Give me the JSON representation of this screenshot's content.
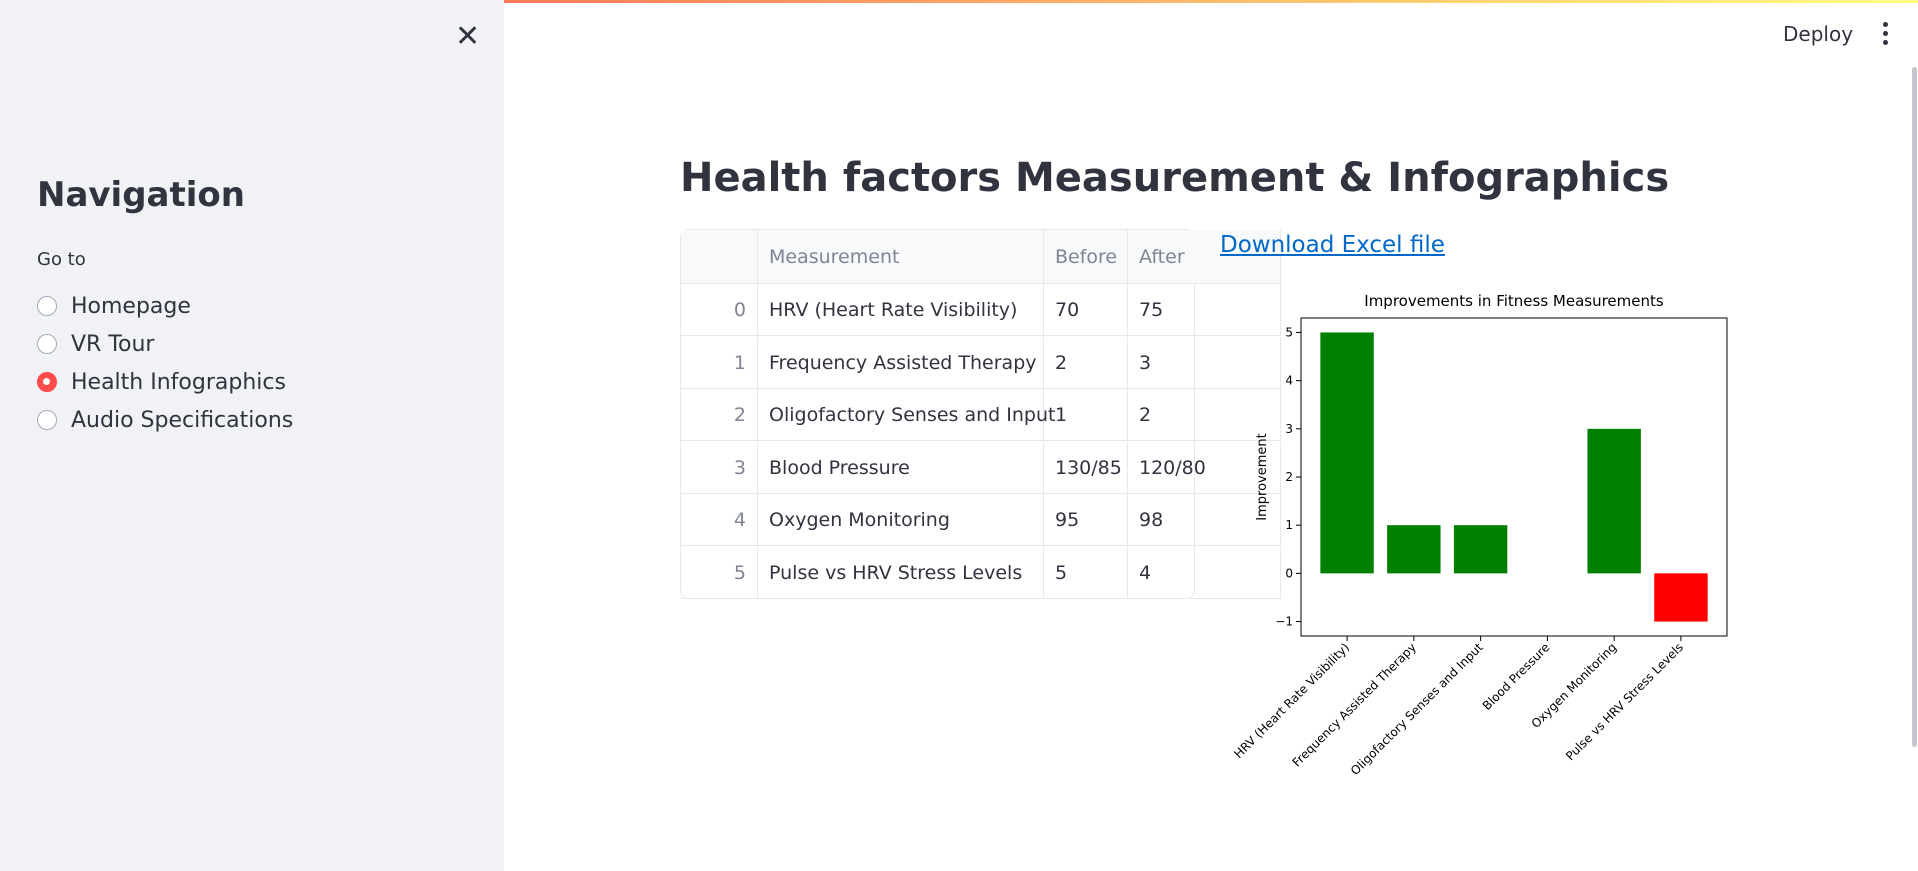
{
  "header": {
    "action": "Deploy"
  },
  "sidebar": {
    "title": "Navigation",
    "radio_label": "Go to",
    "options": [
      "Homepage",
      "VR Tour",
      "Health Infographics",
      "Audio Specifications"
    ],
    "selected": 2
  },
  "main": {
    "title": "Health factors Measurement & Infographics",
    "table": {
      "columns": [
        "Measurement",
        "Before",
        "After"
      ],
      "index": [
        0,
        1,
        2,
        3,
        4,
        5
      ],
      "rows": [
        [
          "HRV (Heart Rate Visibility)",
          "70",
          "75"
        ],
        [
          "Frequency Assisted Therapy",
          "2",
          "3"
        ],
        [
          "Oligofactory Senses and Input",
          "1",
          "2"
        ],
        [
          "Blood Pressure",
          "130/85",
          "120/80"
        ],
        [
          "Oxygen Monitoring",
          "95",
          "98"
        ],
        [
          "Pulse vs HRV Stress Levels",
          "5",
          "4"
        ]
      ]
    },
    "link": "Download Excel file"
  },
  "chart_data": {
    "type": "bar",
    "title": "Improvements in Fitness Measurements",
    "ylabel": "Improvement",
    "categories": [
      "HRV (Heart Rate Visibility)",
      "Frequency Assisted Therapy",
      "Oligofactory Senses and Input",
      "Blood Pressure",
      "Oxygen Monitoring",
      "Pulse vs HRV Stress Levels"
    ],
    "values": [
      5,
      1,
      1,
      0,
      3,
      -1
    ],
    "colors": [
      "green",
      "green",
      "green",
      "green",
      "green",
      "red"
    ],
    "ylim": [
      -1.3,
      5.3
    ],
    "yticks": [
      {
        "value": -1,
        "label": "−1"
      },
      0,
      1,
      2,
      3,
      4,
      5
    ]
  }
}
